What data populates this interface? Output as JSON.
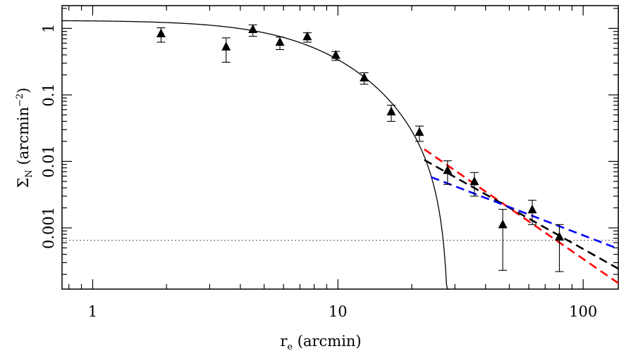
{
  "chart_data": {
    "type": "scatter",
    "x_scale": "log",
    "y_scale": "log",
    "xlim": [
      0.75,
      140
    ],
    "ylim": [
      0.00012,
      2.2
    ],
    "xlabel": {
      "main": "r",
      "sub": "e",
      "rest": " (arcmin)"
    },
    "ylabel": {
      "main": "Σ",
      "sub": "N",
      "rest1": " (arcmin",
      "sup": "−2",
      "rest2": ")"
    },
    "x_ticklabels": [
      {
        "value": 1,
        "label": "1"
      },
      {
        "value": 10,
        "label": "10"
      },
      {
        "value": 100,
        "label": "100"
      }
    ],
    "y_ticklabels": [
      {
        "value": 1,
        "label": "1"
      },
      {
        "value": 0.1,
        "label": "0.1"
      },
      {
        "value": 0.01,
        "label": "0.01"
      },
      {
        "value": 0.001,
        "label": "0.001"
      }
    ],
    "points": [
      {
        "x": 1.9,
        "y": 0.82,
        "ylo": 0.62,
        "yhi": 1.02
      },
      {
        "x": 3.5,
        "y": 0.52,
        "ylo": 0.31,
        "yhi": 0.72
      },
      {
        "x": 4.5,
        "y": 0.95,
        "ylo": 0.76,
        "yhi": 1.13
      },
      {
        "x": 5.8,
        "y": 0.61,
        "ylo": 0.48,
        "yhi": 0.74
      },
      {
        "x": 7.5,
        "y": 0.74,
        "ylo": 0.62,
        "yhi": 0.86
      },
      {
        "x": 9.8,
        "y": 0.39,
        "ylo": 0.33,
        "yhi": 0.45
      },
      {
        "x": 12.8,
        "y": 0.178,
        "ylo": 0.145,
        "yhi": 0.215
      },
      {
        "x": 16.5,
        "y": 0.055,
        "ylo": 0.04,
        "yhi": 0.07
      },
      {
        "x": 21.5,
        "y": 0.027,
        "ylo": 0.02,
        "yhi": 0.034
      },
      {
        "x": 28,
        "y": 0.0072,
        "ylo": 0.0045,
        "yhi": 0.0102
      },
      {
        "x": 36,
        "y": 0.0049,
        "ylo": 0.003,
        "yhi": 0.0068
      },
      {
        "x": 47,
        "y": 0.0011,
        "ylo": 0.00023,
        "yhi": 0.0019
      },
      {
        "x": 62,
        "y": 0.00185,
        "ylo": 0.00112,
        "yhi": 0.0026
      },
      {
        "x": 80,
        "y": 0.00072,
        "ylo": 0.00022,
        "yhi": 0.00112
      }
    ],
    "king_profile": {
      "k": 1.32,
      "rc": 8.5,
      "rt": 28.5
    },
    "background_level": 0.00065,
    "power_laws": [
      {
        "name": "red",
        "color": "#ff0000",
        "x_start": 22.5,
        "x_end": 140,
        "y_start": 0.0152,
        "y_end": 0.000145
      },
      {
        "name": "black",
        "color": "#000000",
        "x_start": 22.5,
        "x_end": 140,
        "y_start": 0.0105,
        "y_end": 0.00024
      },
      {
        "name": "blue",
        "color": "#0000ff",
        "x_start": 24,
        "x_end": 140,
        "y_start": 0.0058,
        "y_end": 0.00048
      }
    ]
  }
}
